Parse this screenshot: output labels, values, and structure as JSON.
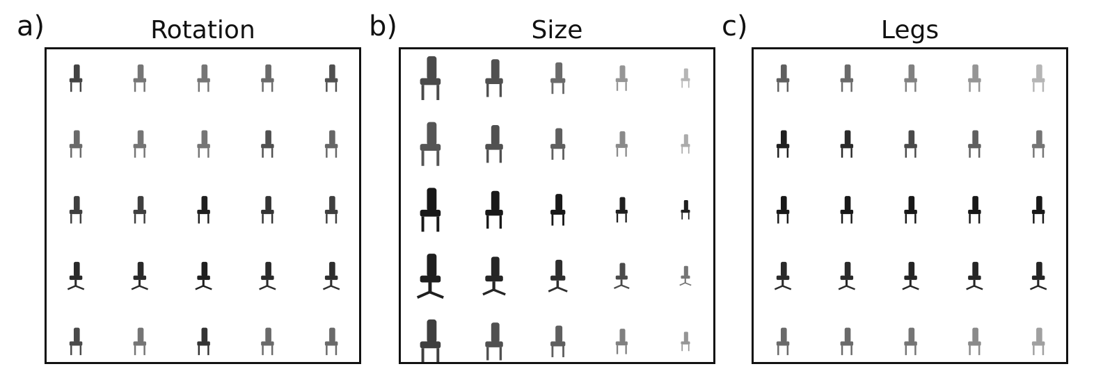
{
  "figure": {
    "panels": [
      {
        "letter": "a)",
        "title": "Rotation",
        "shades": [
          [
            0.78,
            0.55,
            0.55,
            0.6,
            0.72
          ],
          [
            0.6,
            0.55,
            0.55,
            0.72,
            0.62
          ],
          [
            0.8,
            0.8,
            0.95,
            0.85,
            0.8
          ],
          [
            0.9,
            0.9,
            0.95,
            0.9,
            0.88
          ],
          [
            0.75,
            0.55,
            0.85,
            0.6,
            0.6
          ]
        ]
      },
      {
        "letter": "b)",
        "title": "Size",
        "shades": [
          [
            0.75,
            0.72,
            0.6,
            0.4,
            0.25
          ],
          [
            0.7,
            0.72,
            0.65,
            0.45,
            0.3
          ],
          [
            0.98,
            0.98,
            0.98,
            0.95,
            0.95
          ],
          [
            0.95,
            0.92,
            0.88,
            0.75,
            0.55
          ],
          [
            0.8,
            0.72,
            0.65,
            0.5,
            0.4
          ]
        ]
      },
      {
        "letter": "c)",
        "title": "Legs",
        "shades": [
          [
            0.65,
            0.6,
            0.5,
            0.4,
            0.25
          ],
          [
            0.95,
            0.9,
            0.75,
            0.65,
            0.55
          ],
          [
            0.98,
            0.98,
            0.98,
            0.98,
            0.98
          ],
          [
            0.9,
            0.9,
            0.92,
            0.92,
            0.92
          ],
          [
            0.6,
            0.6,
            0.55,
            0.45,
            0.35
          ]
        ]
      }
    ]
  }
}
